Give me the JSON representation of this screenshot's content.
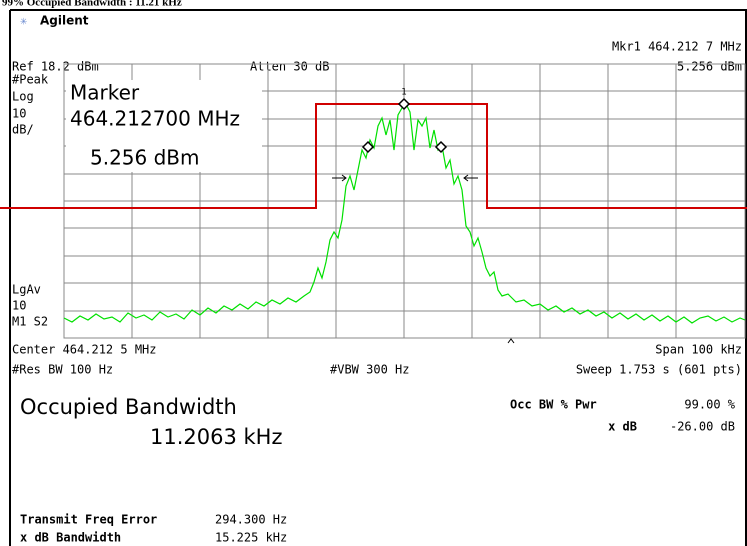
{
  "header": {
    "caption": "99% Occupied Bandwidth :        11.21  kHz",
    "brand": "Agilent",
    "marker_readout": "Mkr1  464.212 7 MHz",
    "marker_level": "5.256 dBm"
  },
  "settings": {
    "ref": "Ref 18.2 dBm",
    "atten": "Atten 30 dB",
    "detector": "#Peak",
    "scale": [
      "Log",
      "10",
      "dB/"
    ],
    "average": [
      "LgAv",
      "10",
      "M1  S2"
    ],
    "center": "Center 464.212 5 MHz",
    "span": "Span 100 kHz",
    "rbw": "#Res BW 100 Hz",
    "vbw": "#VBW 300 Hz",
    "sweep": "Sweep 1.753 s (601 pts)"
  },
  "marker": {
    "title": "Marker",
    "frequency": "464.212700 MHz",
    "level": "5.256 dBm",
    "number": "1"
  },
  "results": {
    "title": "Occupied Bandwidth",
    "value": "11.2063 kHz",
    "occ_label": "Occ BW % Pwr",
    "occ_value": "99.00 %",
    "xdb_label": "x dB",
    "xdb_value": "-26.00 dB",
    "freq_error_label": "Transmit Freq Error",
    "freq_error_value": "294.300 Hz",
    "xdb_bw_label": "x dB Bandwidth",
    "xdb_bw_value": "15.225 kHz"
  }
}
